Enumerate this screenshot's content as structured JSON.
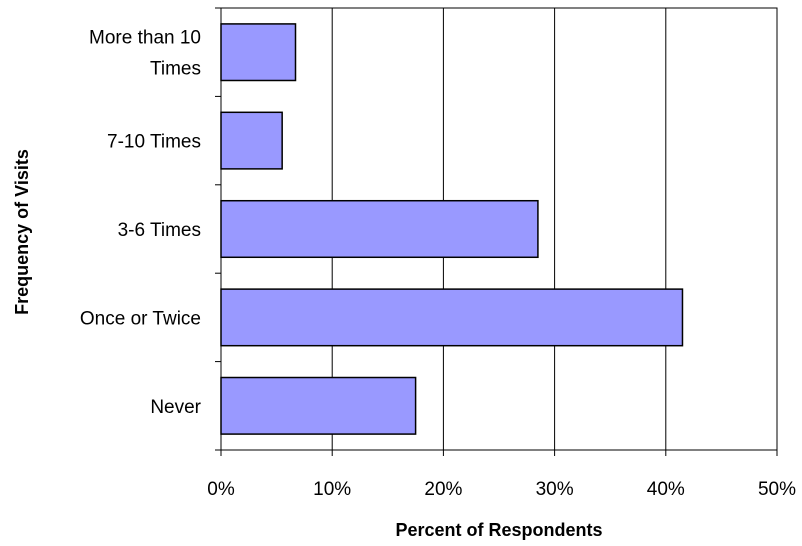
{
  "chart_data": {
    "type": "bar",
    "orientation": "horizontal",
    "categories": [
      "More than 10 Times",
      "7-10 Times",
      "3-6 Times",
      "Once or Twice",
      "Never"
    ],
    "category_lines": [
      [
        "More than 10",
        "Times"
      ],
      [
        "7-10 Times"
      ],
      [
        "3-6 Times"
      ],
      [
        "Once or Twice"
      ],
      [
        "Never"
      ]
    ],
    "values": [
      6.7,
      5.5,
      28.5,
      41.5,
      17.5
    ],
    "xlabel": "Percent of Respondents",
    "ylabel": "Frequency of Visits",
    "xlim": [
      0,
      50
    ],
    "xticks": [
      0,
      10,
      20,
      30,
      40,
      50
    ],
    "xtick_labels": [
      "0%",
      "10%",
      "20%",
      "30%",
      "40%",
      "50%"
    ],
    "grid": true,
    "bar_color": "#9999FF",
    "bar_edge_color": "#000000"
  }
}
